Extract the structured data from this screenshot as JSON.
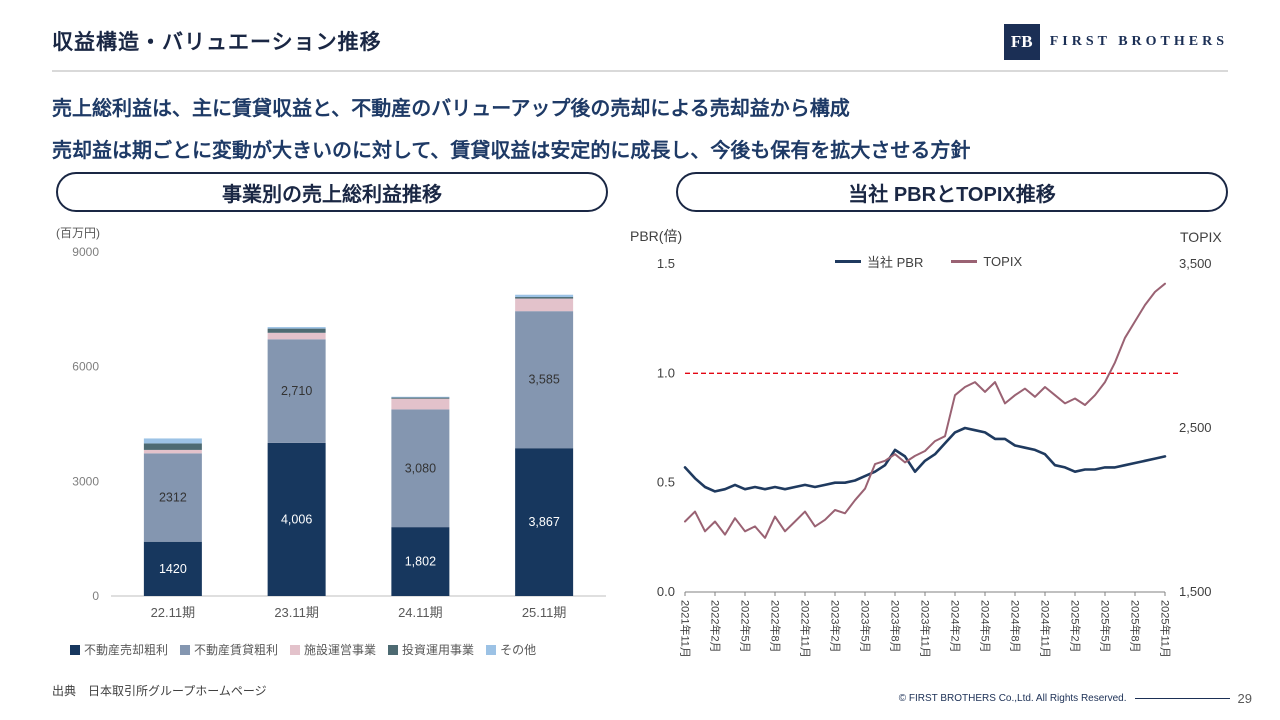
{
  "header": {
    "title": "収益構造・バリュエーション推移",
    "logo_monogram": "FB",
    "logo_text": "FIRST BROTHERS"
  },
  "summary": {
    "line1": "売上総利益は、主に賃貸収益と、不動産のバリューアップ後の売却による売却益から構成",
    "line2": "売却益は期ごとに変動が大きいのに対して、賃貸収益は安定的に成長し、今後も保有を拡大させる方針"
  },
  "footer": {
    "source": "出典　日本取引所グループホームページ",
    "copyright": "© FIRST BROTHERS Co.,Ltd. All Rights Reserved.",
    "page_number": "29"
  },
  "chart_data": [
    {
      "id": "gross-profit-by-segment",
      "type": "bar",
      "stacked": true,
      "title": "事業別の売上総利益推移",
      "ylabel": "(百万円)",
      "ylim": [
        0,
        9000
      ],
      "yticks": [
        0,
        3000,
        6000,
        9000
      ],
      "categories": [
        "22.11期",
        "23.11期",
        "24.11期",
        "25.11期"
      ],
      "series": [
        {
          "name": "不動産売却粗利",
          "color": "#17375e",
          "values": [
            1420,
            4006,
            1802,
            3867
          ],
          "labels": [
            "1420",
            "4,006",
            "1,802",
            "3,867"
          ],
          "label_color": "#ffffff"
        },
        {
          "name": "不動産賃貸粗利",
          "color": "#8496b0",
          "values": [
            2312,
            2710,
            3080,
            3585
          ],
          "labels": [
            "2312",
            "2,710",
            "3,080",
            "3,585"
          ],
          "label_color": "#333333"
        },
        {
          "name": "施設運営事業",
          "color": "#e3c2cb",
          "values": [
            90,
            170,
            280,
            330
          ]
        },
        {
          "name": "投資運用事業",
          "color": "#4d6a72",
          "values": [
            170,
            110,
            30,
            40
          ]
        },
        {
          "name": "その他",
          "color": "#9cc2e5",
          "values": [
            130,
            40,
            20,
            60
          ]
        }
      ]
    },
    {
      "id": "pbr-topix",
      "type": "line",
      "title": "当社 PBRとTOPIX推移",
      "ylabel_left": "PBR(倍)",
      "ylabel_right": "TOPIX",
      "ylim_left": [
        0,
        1.5
      ],
      "yticks_left": [
        "0.0",
        "0.5",
        "1.0",
        "1.5"
      ],
      "ylim_right": [
        1500,
        3500
      ],
      "yticks_right": [
        "1,500",
        "2,500",
        "3,500"
      ],
      "reference_line": {
        "axis": "left",
        "value": 1.0,
        "color": "#e30613",
        "style": "dashed"
      },
      "x_tick_every": 3,
      "x_tick_labels": [
        "2021年11月",
        "2022年2月",
        "2022年5月",
        "2022年8月",
        "2022年11月",
        "2023年2月",
        "2023年5月",
        "2023年8月",
        "2023年11月",
        "2024年2月",
        "2024年5月",
        "2024年8月",
        "2024年11月",
        "2025年2月",
        "2025年5月",
        "2025年8月",
        "2025年11月"
      ],
      "series": [
        {
          "name": "当社 PBR",
          "axis": "left",
          "color": "#1f3a5f",
          "width": 2.6,
          "values": [
            0.57,
            0.52,
            0.48,
            0.46,
            0.47,
            0.49,
            0.47,
            0.48,
            0.47,
            0.48,
            0.47,
            0.48,
            0.49,
            0.48,
            0.49,
            0.5,
            0.5,
            0.51,
            0.53,
            0.55,
            0.58,
            0.65,
            0.62,
            0.55,
            0.6,
            0.63,
            0.68,
            0.73,
            0.75,
            0.74,
            0.73,
            0.7,
            0.7,
            0.67,
            0.66,
            0.65,
            0.63,
            0.58,
            0.57,
            0.55,
            0.56,
            0.56,
            0.57,
            0.57,
            0.58,
            0.59,
            0.6,
            0.61,
            0.62
          ]
        },
        {
          "name": "TOPIX",
          "axis": "right",
          "color": "#9a6273",
          "width": 2,
          "values": [
            1930,
            1990,
            1870,
            1930,
            1850,
            1950,
            1870,
            1900,
            1830,
            1960,
            1870,
            1930,
            1990,
            1900,
            1940,
            2000,
            1980,
            2060,
            2130,
            2280,
            2300,
            2340,
            2290,
            2330,
            2360,
            2420,
            2450,
            2700,
            2750,
            2780,
            2720,
            2780,
            2650,
            2700,
            2740,
            2690,
            2750,
            2700,
            2650,
            2680,
            2640,
            2700,
            2780,
            2900,
            3050,
            3150,
            3250,
            3330,
            3380
          ]
        }
      ]
    }
  ]
}
